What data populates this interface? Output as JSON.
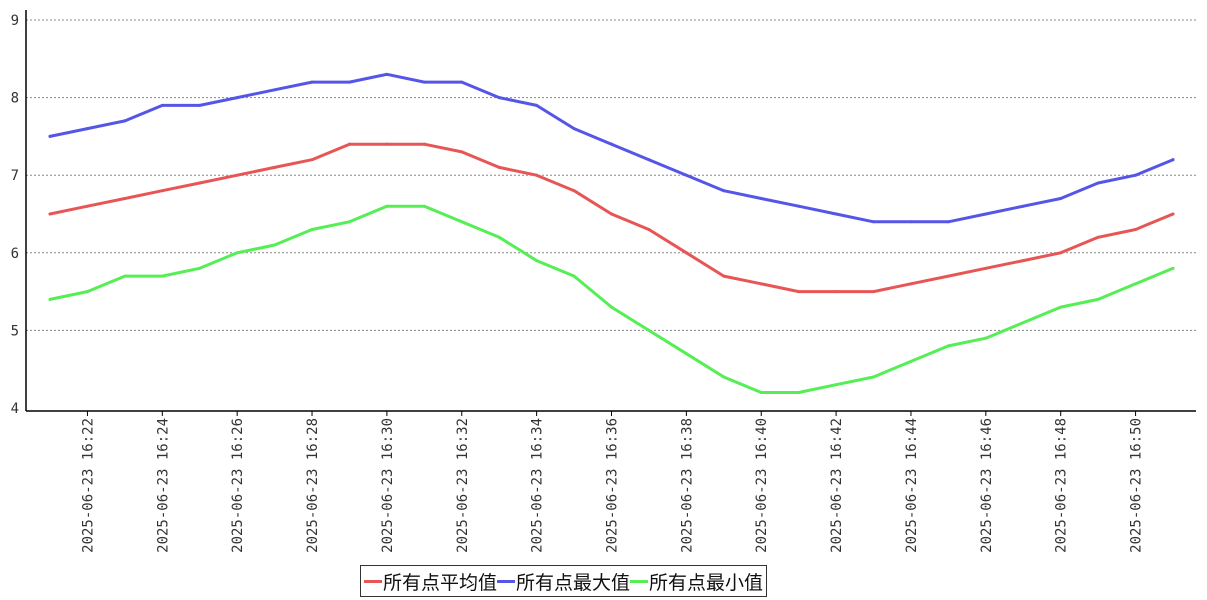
{
  "chart_data": {
    "type": "line",
    "x": [
      "2025-06-23 16:21",
      "2025-06-23 16:22",
      "2025-06-23 16:23",
      "2025-06-23 16:24",
      "2025-06-23 16:25",
      "2025-06-23 16:26",
      "2025-06-23 16:27",
      "2025-06-23 16:28",
      "2025-06-23 16:29",
      "2025-06-23 16:30",
      "2025-06-23 16:31",
      "2025-06-23 16:32",
      "2025-06-23 16:33",
      "2025-06-23 16:34",
      "2025-06-23 16:35",
      "2025-06-23 16:36",
      "2025-06-23 16:37",
      "2025-06-23 16:38",
      "2025-06-23 16:39",
      "2025-06-23 16:40",
      "2025-06-23 16:41",
      "2025-06-23 16:42",
      "2025-06-23 16:43",
      "2025-06-23 16:44",
      "2025-06-23 16:45",
      "2025-06-23 16:46",
      "2025-06-23 16:47",
      "2025-06-23 16:48",
      "2025-06-23 16:49",
      "2025-06-23 16:50",
      "2025-06-23 16:51"
    ],
    "x_tick_labels": [
      "2025-06-23 16:22",
      "2025-06-23 16:24",
      "2025-06-23 16:26",
      "2025-06-23 16:28",
      "2025-06-23 16:30",
      "2025-06-23 16:32",
      "2025-06-23 16:34",
      "2025-06-23 16:36",
      "2025-06-23 16:38",
      "2025-06-23 16:40",
      "2025-06-23 16:42",
      "2025-06-23 16:44",
      "2025-06-23 16:46",
      "2025-06-23 16:48",
      "2025-06-23 16:50"
    ],
    "series": [
      {
        "name": "所有点平均值",
        "color": "#e85555",
        "values": [
          6.5,
          6.6,
          6.7,
          6.8,
          6.9,
          7.0,
          7.1,
          7.2,
          7.4,
          7.4,
          7.4,
          7.3,
          7.1,
          7.0,
          6.8,
          6.5,
          6.3,
          6.0,
          5.7,
          5.6,
          5.5,
          5.5,
          5.5,
          5.6,
          5.7,
          5.8,
          5.9,
          6.0,
          6.2,
          6.3,
          6.5
        ]
      },
      {
        "name": "所有点最大值",
        "color": "#5555e8",
        "values": [
          7.5,
          7.6,
          7.7,
          7.9,
          7.9,
          8.0,
          8.1,
          8.2,
          8.2,
          8.3,
          8.2,
          8.2,
          8.0,
          7.9,
          7.6,
          7.4,
          7.2,
          7.0,
          6.8,
          6.7,
          6.6,
          6.5,
          6.4,
          6.4,
          6.4,
          6.5,
          6.6,
          6.7,
          6.9,
          7.0,
          7.2
        ]
      },
      {
        "name": "所有点最小值",
        "color": "#55ee55",
        "values": [
          5.4,
          5.5,
          5.7,
          5.7,
          5.8,
          6.0,
          6.1,
          6.3,
          6.4,
          6.6,
          6.6,
          6.4,
          6.2,
          5.9,
          5.7,
          5.3,
          5.0,
          4.7,
          4.4,
          4.2,
          4.2,
          4.3,
          4.4,
          4.6,
          4.8,
          4.9,
          5.1,
          5.3,
          5.4,
          5.6,
          5.8
        ]
      }
    ],
    "y_ticks": [
      4,
      5,
      6,
      7,
      8,
      9
    ],
    "ylim": [
      4,
      9
    ],
    "grid": true,
    "legend_position": "bottom-center"
  }
}
